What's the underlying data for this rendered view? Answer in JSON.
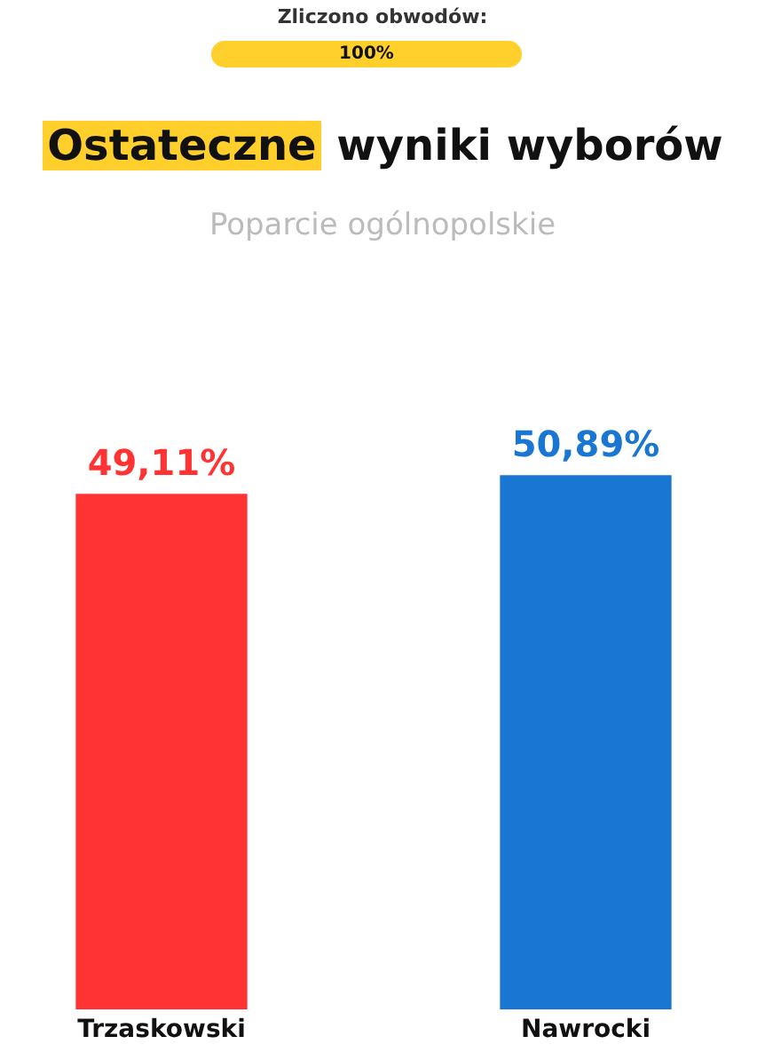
{
  "chart_data": {
    "type": "bar",
    "title": "Ostateczne wyniki wyborów",
    "subtitle": "Poparcie ogólnopolskie",
    "annotations": [
      "Zliczono obwodów:",
      "100%"
    ],
    "categories": [
      "Trzaskowski",
      "Nawrocki"
    ],
    "values": [
      49.11,
      50.89
    ],
    "colors": [
      "#ff3333",
      "#1976d2"
    ],
    "value_labels": [
      "49,11%",
      "50,89%"
    ],
    "grid": false,
    "legend": false
  }
}
